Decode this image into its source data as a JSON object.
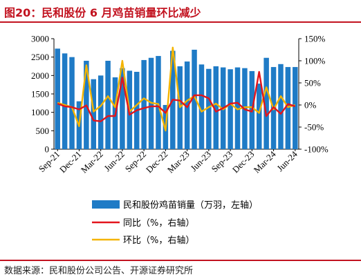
{
  "header": {
    "title": "图20：民和股份 6 月鸡苗销量环比减少"
  },
  "footer": {
    "source": "数据来源：民和股份公司公告、开源证券研究所"
  },
  "colors": {
    "bar": "#1f7bc6",
    "yoy_line": "#e3141b",
    "mom_line": "#f4b400",
    "accent": "#c2121f"
  },
  "chart_data": {
    "type": "bar",
    "x": [
      "Sep-21",
      "Oct-21",
      "Nov-21",
      "Dec-21",
      "Jan-22",
      "Feb-22",
      "Mar-22",
      "Apr-22",
      "May-22",
      "Jun-22",
      "Jul-22",
      "Aug-22",
      "Sep-22",
      "Oct-22",
      "Nov-22",
      "Dec-22",
      "Jan-23",
      "Feb-23",
      "Mar-23",
      "Apr-23",
      "May-23",
      "Jun-23",
      "Jul-23",
      "Aug-23",
      "Sep-23",
      "Oct-23",
      "Nov-23",
      "Dec-23",
      "Jan-24",
      "Feb-24",
      "Mar-24",
      "Apr-24",
      "May-24",
      "Jun-24"
    ],
    "x_tick_labels": [
      "Sep-21",
      "Dec-21",
      "Mar-22",
      "Jun-22",
      "Sep-22",
      "Dec-22",
      "Mar-23",
      "Jun-23",
      "Sep-23",
      "Dec-23",
      "Mar-24",
      "Jun-24"
    ],
    "series": [
      {
        "name": "民和股份鸡苗销量（万羽，左轴）",
        "axis": "left",
        "kind": "bar",
        "values": [
          2730,
          2600,
          2500,
          1300,
          2400,
          1900,
          2000,
          2400,
          1950,
          2200,
          2130,
          2100,
          2420,
          2480,
          2530,
          1200,
          2670,
          2250,
          2380,
          2700,
          2300,
          2180,
          2250,
          2220,
          2170,
          2220,
          2200,
          2120,
          1780,
          2480,
          2230,
          2310,
          2230,
          2230
        ]
      },
      {
        "name": "同比（%，右轴）",
        "axis": "right",
        "kind": "line",
        "values": [
          3,
          -3,
          -5,
          -10,
          -1,
          -35,
          -37,
          -25,
          -25,
          62,
          -22,
          -12,
          -7,
          -3,
          -3,
          -18,
          12,
          10,
          -5,
          22,
          22,
          15,
          -15,
          -7,
          3,
          5,
          -10,
          -15,
          75,
          -25,
          -5,
          -20,
          2,
          -3
        ]
      },
      {
        "name": "环比（%，右轴）",
        "axis": "right",
        "kind": "line",
        "values": [
          5,
          0,
          -5,
          -48,
          90,
          -15,
          -2,
          20,
          -5,
          100,
          -15,
          0,
          15,
          5,
          2,
          -58,
          130,
          -5,
          10,
          20,
          -15,
          -5,
          3,
          -10,
          3,
          -10,
          -5,
          -5,
          -18,
          40,
          -10,
          20,
          -5,
          0
        ]
      }
    ],
    "yleft_lim": [
      0,
      3000
    ],
    "yleft_ticks": [
      "0",
      "500",
      "1000",
      "1500",
      "2000",
      "2500",
      "3000"
    ],
    "yright_lim": [
      -100,
      150
    ],
    "yright_ticks": [
      "-100%",
      "-50%",
      "0%",
      "50%",
      "100%",
      "150%"
    ],
    "legend_position": "bottom",
    "grid": false
  }
}
